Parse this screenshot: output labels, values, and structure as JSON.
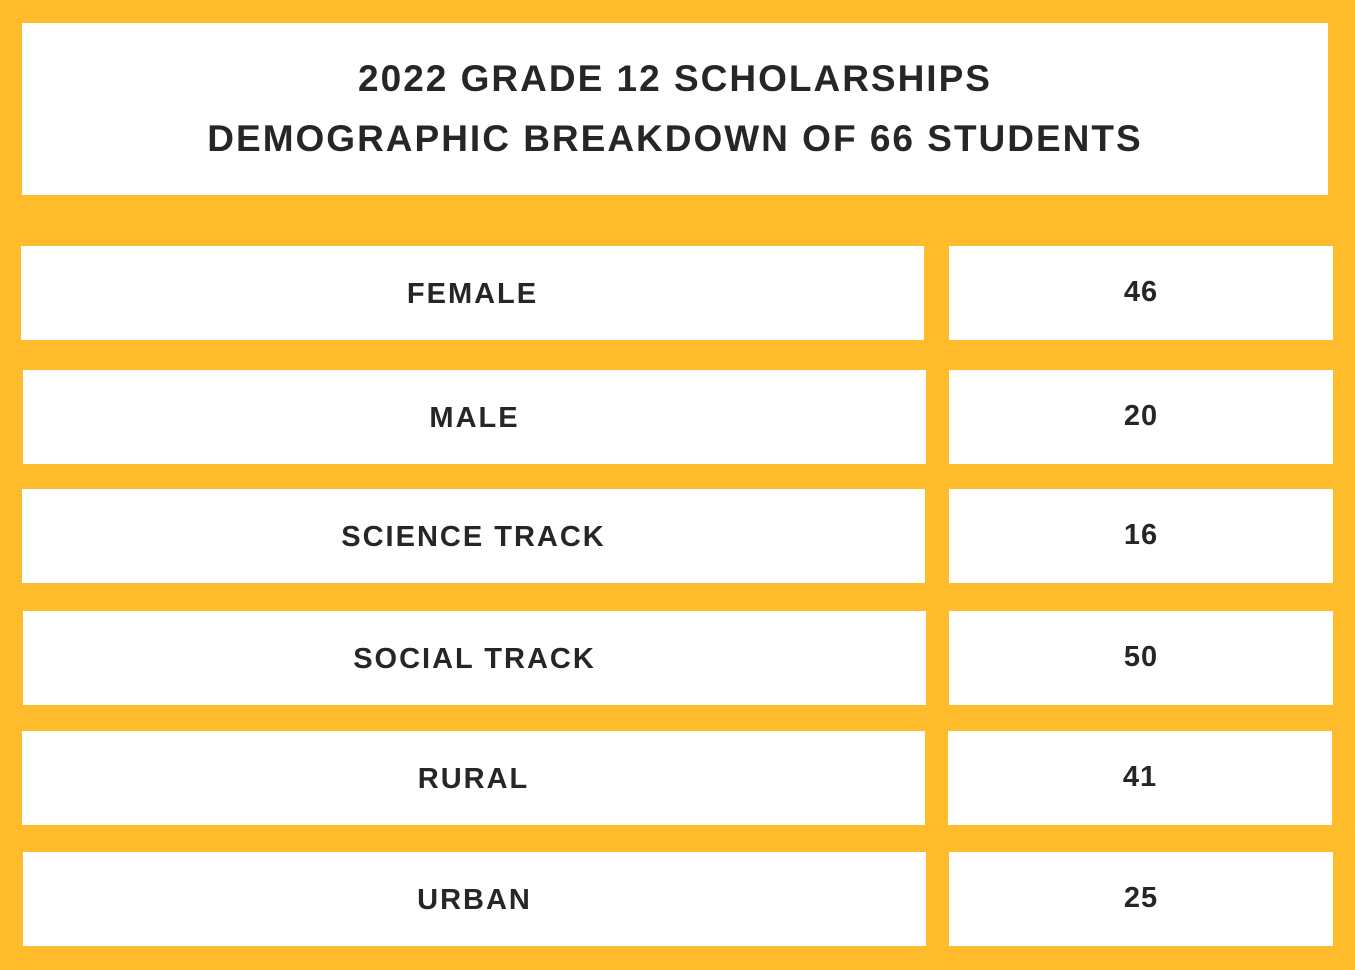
{
  "title": {
    "line1": "2022 GRADE 12 SCHOLARSHIPS",
    "line2": "DEMOGRAPHIC BREAKDOWN OF 66 STUDENTS"
  },
  "rows": [
    {
      "label": "FEMALE",
      "value": "46"
    },
    {
      "label": "MALE",
      "value": "20"
    },
    {
      "label": "SCIENCE TRACK",
      "value": "16"
    },
    {
      "label": "SOCIAL TRACK",
      "value": "50"
    },
    {
      "label": "RURAL",
      "value": "41"
    },
    {
      "label": "URBAN",
      "value": "25"
    }
  ],
  "colors": {
    "background": "#FEBC2C",
    "panel": "#FFFFFF",
    "text": "#262626"
  },
  "chart_data": {
    "type": "table",
    "title": "2022 GRADE 12 SCHOLARSHIPS",
    "subtitle": "DEMOGRAPHIC BREAKDOWN OF 66 STUDENTS",
    "categories": [
      "FEMALE",
      "MALE",
      "SCIENCE TRACK",
      "SOCIAL TRACK",
      "RURAL",
      "URBAN"
    ],
    "values": [
      46,
      20,
      16,
      50,
      41,
      25
    ]
  }
}
